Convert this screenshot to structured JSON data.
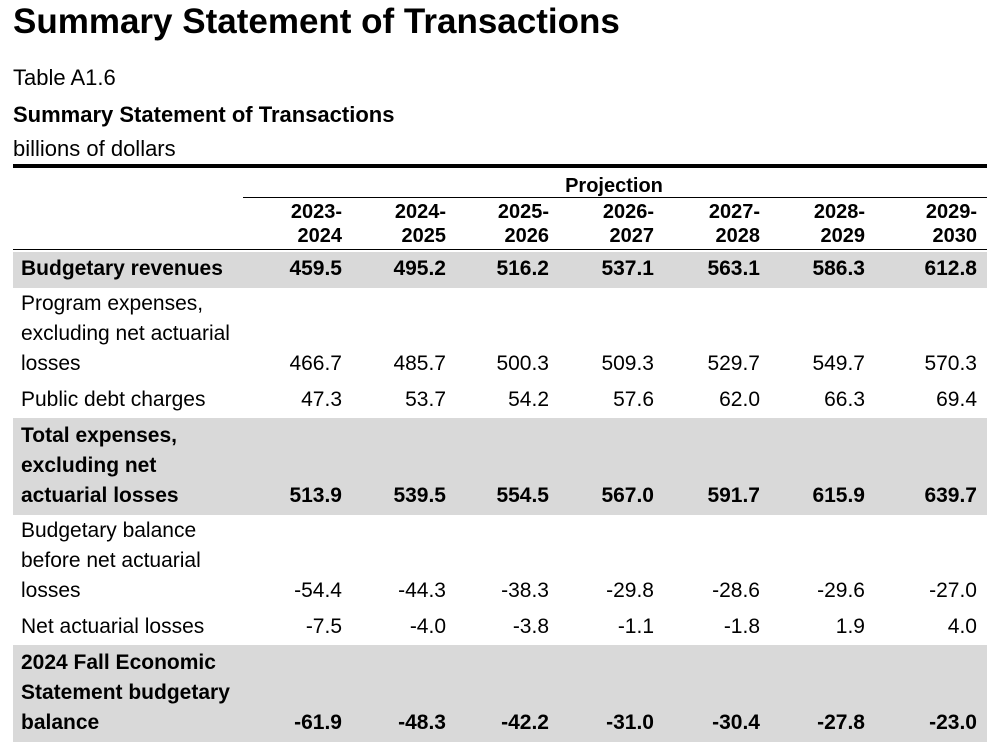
{
  "page_title": "Summary Statement of Transactions",
  "table": {
    "number": "Table A1.6",
    "title": "Summary Statement of Transactions",
    "unit": "billions of dollars",
    "projection_label": "Projection",
    "years": [
      "2023-\n2024",
      "2024-\n2025",
      "2025-\n2026",
      "2026-\n2027",
      "2027-\n2028",
      "2028-\n2029",
      "2029-\n2030"
    ],
    "rows": [
      {
        "label": "Budgetary revenues",
        "bold": true,
        "shaded": true,
        "values": [
          "459.5",
          "495.2",
          "516.2",
          "537.1",
          "563.1",
          "586.3",
          "612.8"
        ]
      },
      {
        "label": "Program expenses, excluding net actuarial losses",
        "bold": false,
        "shaded": false,
        "values": [
          "466.7",
          "485.7",
          "500.3",
          "509.3",
          "529.7",
          "549.7",
          "570.3"
        ]
      },
      {
        "label": "Public debt charges",
        "bold": false,
        "shaded": false,
        "values": [
          "47.3",
          "53.7",
          "54.2",
          "57.6",
          "62.0",
          "66.3",
          "69.4"
        ]
      },
      {
        "label": "Total expenses, excluding net actuarial losses",
        "bold": true,
        "shaded": true,
        "values": [
          "513.9",
          "539.5",
          "554.5",
          "567.0",
          "591.7",
          "615.9",
          "639.7"
        ]
      },
      {
        "label": "Budgetary balance before net actuarial losses",
        "bold": false,
        "shaded": false,
        "values": [
          "-54.4",
          "-44.3",
          "-38.3",
          "-29.8",
          "-28.6",
          "-29.6",
          "-27.0"
        ]
      },
      {
        "label": "Net actuarial losses",
        "bold": false,
        "shaded": false,
        "values": [
          "-7.5",
          "-4.0",
          "-3.8",
          "-1.1",
          "-1.8",
          "1.9",
          "4.0"
        ]
      },
      {
        "label": "2024 Fall Economic Statement budgetary balance",
        "bold": true,
        "shaded": true,
        "values": [
          "-61.9",
          "-48.3",
          "-42.2",
          "-31.0",
          "-30.4",
          "-27.8",
          "-23.0"
        ]
      }
    ]
  }
}
